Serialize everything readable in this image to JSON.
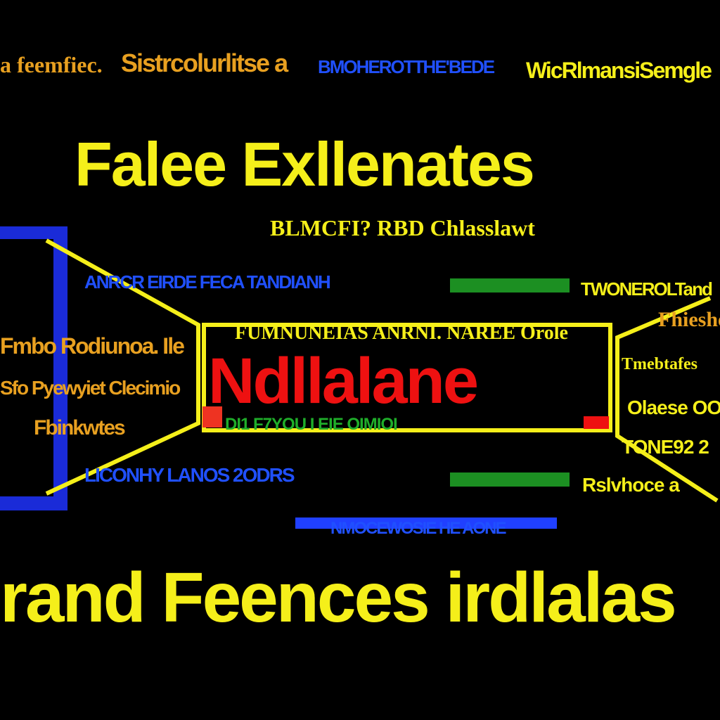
{
  "header": {
    "left_note": "a feemfiec.",
    "top_left": "Sistrcolurlitse a",
    "top_blue": "BMOHEROTTHE'BEDE",
    "top_right": "WicRlmansiSemgle"
  },
  "title": "Falee Exllenates",
  "subtitle": "BLMCFI? RBD Chlasslawt",
  "rows": [
    "ANRCR EIRDE FECA TANDIANH",
    "LICONHY LANOS 2ODRS",
    "NMOCEWOSIE HE AONE"
  ],
  "left_labels": [
    "Fmbo Rodiunoa. Ile",
    "Sfo Pyewyiet Clecimio",
    "Fbinkwtes"
  ],
  "center": {
    "above": "FUMNUNEIAS ANRNI. NAREE Orole",
    "name": "Ndllalane",
    "below": "DI1 F7YOU I EIE OIMIOI"
  },
  "right_labels": [
    "TWONEROLTand",
    "Fhieshe",
    "Tmebtafes",
    "Olaese OO",
    "TONE92 2",
    "Rslvhoce a"
  ],
  "footer": "rand Feences irdlalas"
}
